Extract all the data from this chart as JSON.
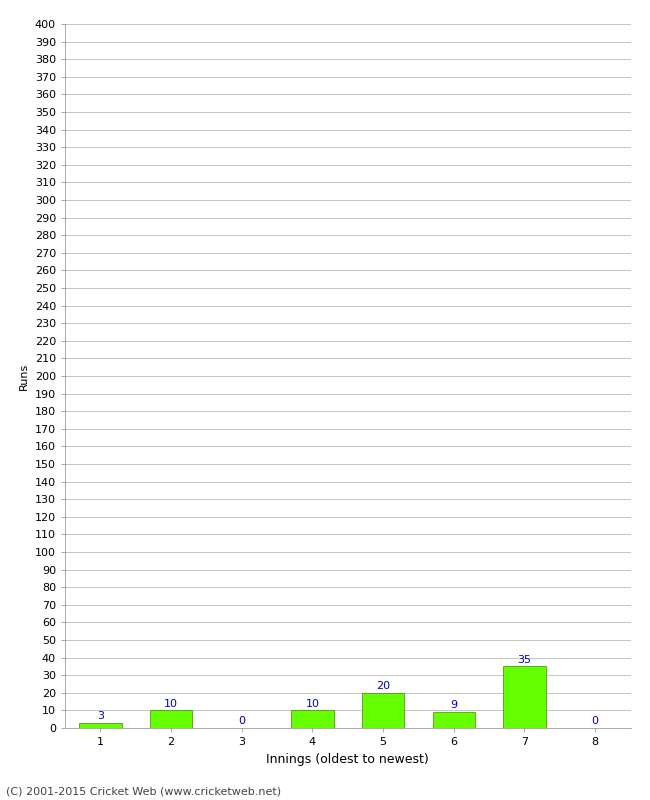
{
  "innings": [
    1,
    2,
    3,
    4,
    5,
    6,
    7,
    8
  ],
  "runs": [
    3,
    10,
    0,
    10,
    20,
    9,
    35,
    0
  ],
  "bar_color": "#66ff00",
  "bar_edge_color": "#448800",
  "label_color": "#0000cc",
  "xlabel": "Innings (oldest to newest)",
  "ylabel": "Runs",
  "ylim": [
    0,
    400
  ],
  "ytick_step": 10,
  "grid_color": "#bbbbbb",
  "bg_color": "#ffffff",
  "footer": "(C) 2001-2015 Cricket Web (www.cricketweb.net)",
  "footer_color": "#444444",
  "footer_fontsize": 8,
  "xlabel_fontsize": 9,
  "ylabel_fontsize": 8,
  "tick_label_fontsize": 8,
  "bar_label_fontsize": 8
}
